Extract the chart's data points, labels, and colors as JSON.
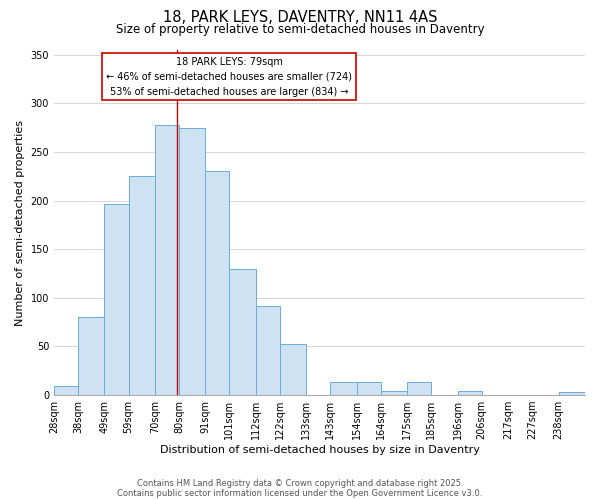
{
  "title": "18, PARK LEYS, DAVENTRY, NN11 4AS",
  "subtitle": "Size of property relative to semi-detached houses in Daventry",
  "xlabel": "Distribution of semi-detached houses by size in Daventry",
  "ylabel": "Number of semi-detached properties",
  "bin_labels": [
    "28sqm",
    "38sqm",
    "49sqm",
    "59sqm",
    "70sqm",
    "80sqm",
    "91sqm",
    "101sqm",
    "112sqm",
    "122sqm",
    "133sqm",
    "143sqm",
    "154sqm",
    "164sqm",
    "175sqm",
    "185sqm",
    "196sqm",
    "206sqm",
    "217sqm",
    "227sqm",
    "238sqm"
  ],
  "bin_edges": [
    28,
    38,
    49,
    59,
    70,
    80,
    91,
    101,
    112,
    122,
    133,
    143,
    154,
    164,
    175,
    185,
    196,
    206,
    217,
    227,
    238
  ],
  "bar_widths": [
    10,
    11,
    10,
    11,
    10,
    11,
    10,
    11,
    10,
    11,
    10,
    11,
    10,
    11,
    10,
    11,
    10,
    11,
    10,
    11,
    11
  ],
  "bar_heights": [
    9,
    80,
    197,
    225,
    278,
    275,
    231,
    130,
    92,
    53,
    0,
    13,
    13,
    4,
    13,
    0,
    4,
    0,
    0,
    0,
    3
  ],
  "bar_color": "#cfe2f3",
  "bar_edge_color": "#6aaed6",
  "property_size": 79,
  "pct_smaller": 46,
  "pct_larger": 53,
  "count_smaller": 724,
  "count_larger": 834,
  "vline_color": "#cc0000",
  "annotation_box_edge": "#cc0000",
  "ylim": [
    0,
    355
  ],
  "yticks": [
    0,
    50,
    100,
    150,
    200,
    250,
    300,
    350
  ],
  "footnote1": "Contains HM Land Registry data © Crown copyright and database right 2025.",
  "footnote2": "Contains public sector information licensed under the Open Government Licence v3.0.",
  "title_fontsize": 10.5,
  "subtitle_fontsize": 8.5,
  "xlabel_fontsize": 8,
  "ylabel_fontsize": 8,
  "tick_fontsize": 7,
  "footnote_fontsize": 6,
  "annot_fontsize": 7,
  "background_color": "#ffffff",
  "grid_color": "#d0d0d0"
}
